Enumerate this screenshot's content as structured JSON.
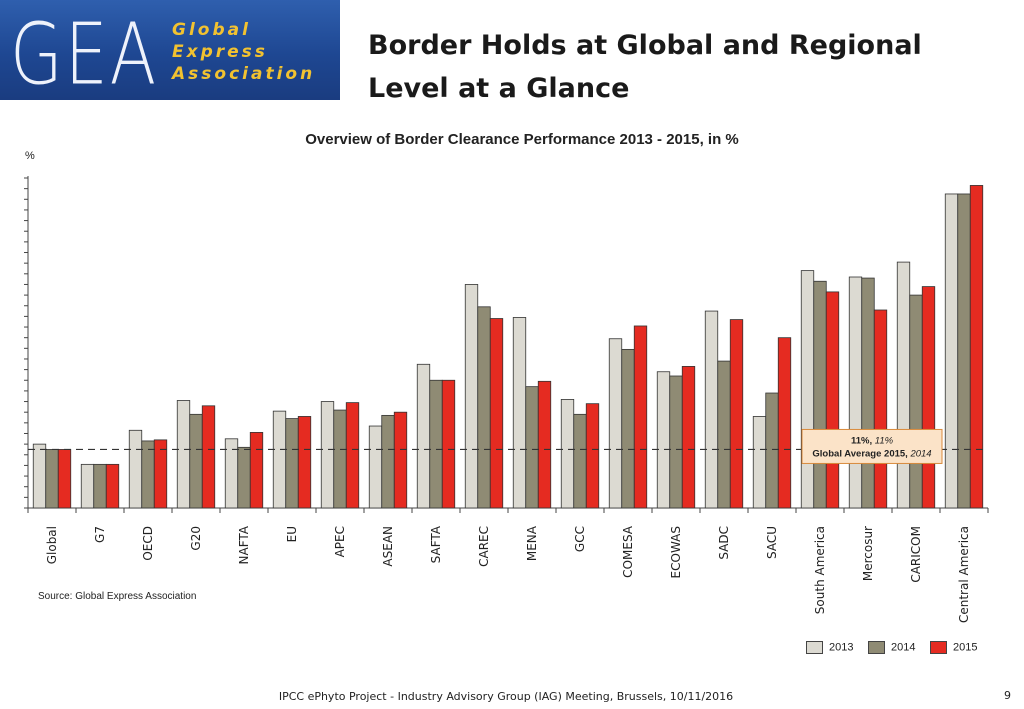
{
  "header": {
    "logo_initials": "GEA",
    "logo_line1": "Global",
    "logo_line2": "Express",
    "logo_line3": "Association",
    "headline": "Border Holds at Global and Regional Level at a Glance"
  },
  "colors": {
    "series_2013": "#dcdad2",
    "series_2014": "#8f8b74",
    "series_2015": "#e52b21",
    "logo_background": "#1e4792",
    "logo_text": "#f2c230",
    "annotation_fill": "#fbe3c8",
    "annotation_border": "#d88a3c"
  },
  "chart_data": {
    "type": "bar",
    "title": "Overview of Border Clearance Performance 2013 - 2015, in %",
    "ylabel": "%",
    "ylim": [
      0,
      31
    ],
    "y_ticks": [
      0,
      1,
      2,
      3,
      4,
      5,
      6,
      7,
      8,
      9,
      10,
      11,
      12,
      13,
      14,
      15,
      16,
      17,
      18,
      19,
      20,
      21,
      22,
      23,
      24,
      25,
      26,
      27,
      28,
      29,
      30,
      31
    ],
    "grid": false,
    "legend_position": "bottom-right",
    "categories": [
      "Global",
      "G7",
      "OECD",
      "G20",
      "NAFTA",
      "EU",
      "APEC",
      "ASEAN",
      "SAFTA",
      "CAREC",
      "MENA",
      "GCC",
      "COMESA",
      "ECOWAS",
      "SADC",
      "SACU",
      "South America",
      "Mercosur",
      "CARICOM",
      "Central America"
    ],
    "series": [
      {
        "name": "2013",
        "values": [
          6.0,
          4.1,
          7.3,
          10.1,
          6.5,
          9.1,
          10.0,
          7.7,
          13.5,
          21.0,
          17.9,
          10.2,
          15.9,
          12.8,
          18.5,
          8.6,
          22.3,
          21.7,
          23.1,
          29.5
        ]
      },
      {
        "name": "2014",
        "values": [
          5.5,
          4.1,
          6.3,
          8.8,
          5.7,
          8.4,
          9.2,
          8.7,
          12.0,
          18.9,
          11.4,
          8.8,
          14.9,
          12.4,
          13.8,
          10.8,
          21.3,
          21.6,
          20.0,
          29.5
        ]
      },
      {
        "name": "2015",
        "values": [
          5.5,
          4.1,
          6.4,
          9.6,
          7.1,
          8.6,
          9.9,
          9.0,
          12.0,
          17.8,
          11.9,
          9.8,
          17.1,
          13.3,
          17.7,
          16.0,
          20.3,
          18.6,
          20.8,
          30.3
        ]
      }
    ],
    "reference_line": {
      "value": 5.5
    },
    "annotation": {
      "line1_bold": "11%, ",
      "line1_italic": "11%",
      "line2_bold": "Global Average 2015, ",
      "line2_italic": "2014"
    }
  },
  "source_note": "Source: Global Express Association",
  "footer": {
    "text": "IPCC ePhyto Project - Industry Advisory Group (IAG) Meeting, Brussels, 10/11/2016",
    "page_number": "9"
  }
}
